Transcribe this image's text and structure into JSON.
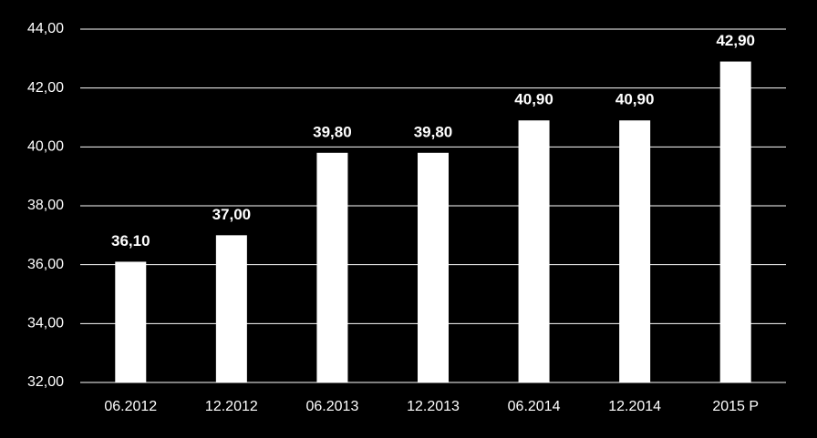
{
  "chart_data": {
    "type": "bar",
    "categories": [
      "06.2012",
      "12.2012",
      "06.2013",
      "12.2013",
      "06.2014",
      "12.2014",
      "2015 P"
    ],
    "values": [
      36.1,
      37.0,
      39.8,
      39.8,
      40.9,
      40.9,
      42.9
    ],
    "value_labels": [
      "36,10",
      "37,00",
      "39,80",
      "39,80",
      "40,90",
      "40,90",
      "42,90"
    ],
    "color": "#ffffff",
    "ylim": [
      32,
      44
    ],
    "yticks": [
      {
        "value": 32,
        "label": "32,00"
      },
      {
        "value": 34,
        "label": "34,00"
      },
      {
        "value": 36,
        "label": "36,00"
      },
      {
        "value": 38,
        "label": "38,00"
      },
      {
        "value": 40,
        "label": "40,00"
      },
      {
        "value": 42,
        "label": "42,00"
      },
      {
        "value": 44,
        "label": "44,00"
      }
    ],
    "grid": true
  }
}
